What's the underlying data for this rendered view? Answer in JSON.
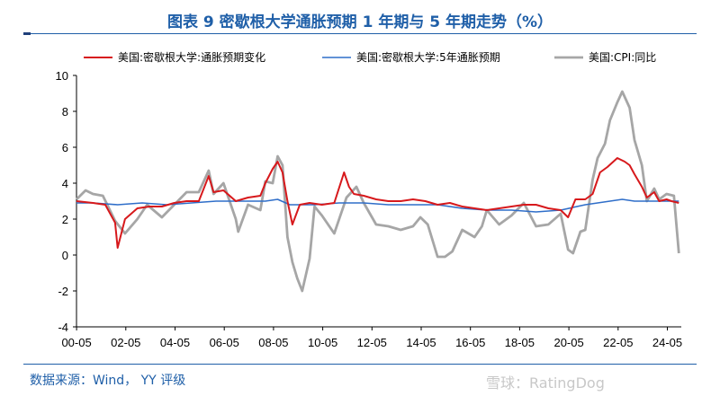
{
  "header": {
    "title": "图表 9 密歇根大学通胀预期 1 年期与 5 年期走势（%）"
  },
  "footer": {
    "source": "数据来源：Wind， YY 评级",
    "watermark": "雪球：RatingDog"
  },
  "chart_data": {
    "type": "line",
    "title": "图表 9 密歇根大学通胀预期 1 年期与 5 年期走势（%）",
    "xlabel": "",
    "ylabel": "",
    "x_ticks": [
      "00-05",
      "02-05",
      "04-05",
      "06-05",
      "08-05",
      "10-05",
      "12-05",
      "14-05",
      "16-05",
      "18-05",
      "20-05",
      "22-05",
      "24-05"
    ],
    "y_ticks": [
      -4,
      -2,
      0,
      2,
      4,
      6,
      8,
      10
    ],
    "ylim": [
      -4,
      10
    ],
    "xlim": [
      2000.33,
      2024.9
    ],
    "grid": false,
    "legend_position": "top",
    "series": [
      {
        "name": "美国:密歇根大学:通胀预期变化",
        "color": "#d7191c",
        "x": [
          2000.33,
          2001.0,
          2001.5,
          2001.9,
          2002.0,
          2002.3,
          2002.8,
          2003.3,
          2003.8,
          2004.3,
          2004.8,
          2005.3,
          2005.7,
          2005.9,
          2006.3,
          2006.8,
          2007.3,
          2007.8,
          2008.0,
          2008.3,
          2008.5,
          2008.7,
          2008.9,
          2009.1,
          2009.4,
          2009.8,
          2010.3,
          2010.8,
          2011.2,
          2011.4,
          2011.6,
          2012.0,
          2012.5,
          2013.0,
          2013.5,
          2014.0,
          2014.5,
          2015.0,
          2015.5,
          2016.0,
          2016.5,
          2017.0,
          2017.5,
          2018.0,
          2018.5,
          2019.0,
          2019.5,
          2020.0,
          2020.3,
          2020.6,
          2021.0,
          2021.3,
          2021.6,
          2021.9,
          2022.3,
          2022.6,
          2022.8,
          2023.0,
          2023.3,
          2023.5,
          2023.8,
          2024.0,
          2024.3,
          2024.5,
          2024.8
        ],
        "values": [
          3.0,
          2.9,
          2.8,
          1.8,
          0.4,
          2.0,
          2.6,
          2.7,
          2.7,
          2.9,
          3.0,
          3.0,
          4.4,
          3.5,
          3.6,
          3.0,
          3.2,
          3.3,
          4.0,
          4.8,
          5.2,
          4.6,
          3.0,
          1.7,
          2.8,
          2.9,
          2.8,
          2.9,
          4.6,
          3.8,
          3.4,
          3.3,
          3.1,
          3.0,
          3.0,
          3.1,
          3.0,
          2.8,
          2.9,
          2.7,
          2.6,
          2.5,
          2.6,
          2.7,
          2.8,
          2.8,
          2.6,
          2.5,
          2.1,
          3.1,
          3.1,
          3.4,
          4.6,
          4.9,
          5.4,
          5.2,
          5.0,
          4.5,
          3.8,
          3.2,
          3.5,
          3.0,
          3.1,
          3.0,
          2.9
        ]
      },
      {
        "name": "美国:密歇根大学:5年通胀预期",
        "color": "#2f6ec9",
        "x": [
          2000.33,
          2001.0,
          2002.0,
          2003.0,
          2004.0,
          2005.0,
          2006.0,
          2007.0,
          2008.0,
          2008.5,
          2009.0,
          2010.0,
          2011.0,
          2012.0,
          2013.0,
          2014.0,
          2015.0,
          2016.0,
          2017.0,
          2018.0,
          2019.0,
          2020.0,
          2021.0,
          2022.0,
          2022.5,
          2023.0,
          2024.0,
          2024.8
        ],
        "values": [
          2.9,
          2.9,
          2.8,
          2.9,
          2.8,
          2.9,
          3.0,
          3.0,
          3.0,
          3.1,
          2.8,
          2.8,
          2.9,
          2.9,
          2.8,
          2.8,
          2.8,
          2.6,
          2.5,
          2.5,
          2.4,
          2.5,
          2.8,
          3.0,
          3.1,
          3.0,
          3.0,
          3.0
        ]
      },
      {
        "name": "美国:CPI:同比",
        "color": "#a6a6a6",
        "x": [
          2000.33,
          2000.7,
          2001.0,
          2001.4,
          2001.9,
          2002.3,
          2002.8,
          2003.2,
          2003.8,
          2004.3,
          2004.8,
          2005.3,
          2005.7,
          2005.9,
          2006.3,
          2006.8,
          2006.9,
          2007.3,
          2007.8,
          2008.0,
          2008.3,
          2008.5,
          2008.7,
          2008.9,
          2009.1,
          2009.3,
          2009.5,
          2009.8,
          2010.0,
          2010.3,
          2010.8,
          2011.3,
          2011.7,
          2012.0,
          2012.5,
          2013.0,
          2013.5,
          2014.0,
          2014.3,
          2014.6,
          2015.0,
          2015.3,
          2015.6,
          2016.0,
          2016.5,
          2016.8,
          2017.0,
          2017.5,
          2018.0,
          2018.5,
          2019.0,
          2019.5,
          2020.0,
          2020.3,
          2020.5,
          2020.8,
          2021.0,
          2021.3,
          2021.5,
          2021.8,
          2022.0,
          2022.3,
          2022.5,
          2022.8,
          2023.0,
          2023.3,
          2023.5,
          2023.8,
          2024.0,
          2024.3,
          2024.6,
          2024.8
        ],
        "values": [
          3.1,
          3.6,
          3.4,
          3.3,
          1.9,
          1.2,
          2.0,
          2.8,
          2.1,
          2.8,
          3.5,
          3.5,
          4.7,
          3.4,
          4.0,
          2.0,
          1.3,
          2.8,
          2.5,
          4.1,
          4.0,
          5.5,
          5.0,
          1.0,
          -0.4,
          -1.3,
          -2.0,
          -0.2,
          2.7,
          2.2,
          1.2,
          3.2,
          3.8,
          2.9,
          1.7,
          1.6,
          1.4,
          1.6,
          2.1,
          1.7,
          -0.1,
          -0.1,
          0.2,
          1.4,
          1.0,
          1.6,
          2.5,
          1.7,
          2.2,
          2.9,
          1.6,
          1.7,
          2.3,
          0.3,
          0.1,
          1.3,
          1.4,
          4.2,
          5.4,
          6.2,
          7.5,
          8.5,
          9.1,
          8.2,
          6.4,
          5.0,
          3.0,
          3.7,
          3.1,
          3.4,
          3.3,
          0.1
        ]
      }
    ]
  }
}
